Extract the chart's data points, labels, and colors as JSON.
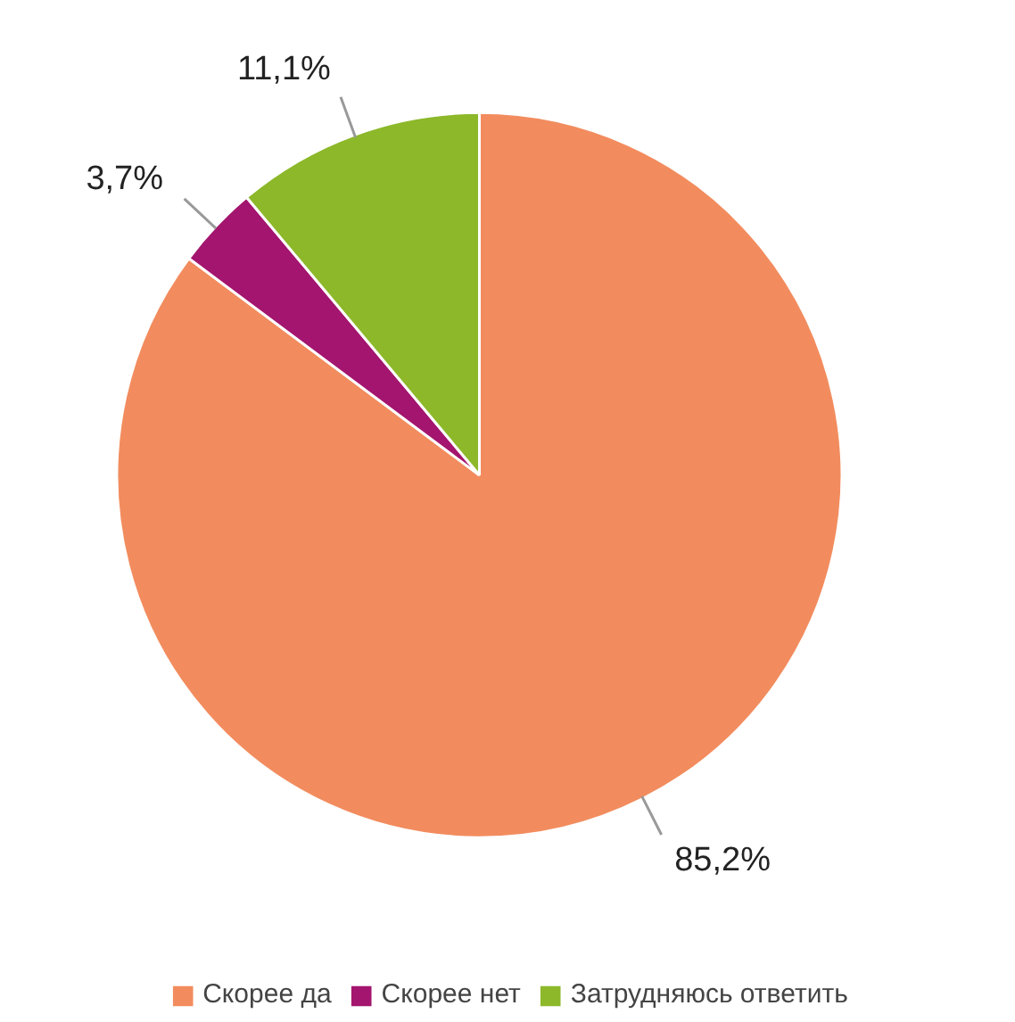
{
  "chart_data": {
    "type": "pie",
    "categories": [
      "Скорее да",
      "Скорее нет",
      "Затрудняюсь ответить"
    ],
    "values": [
      85.2,
      3.7,
      11.1
    ],
    "colors": [
      "#f28c5e",
      "#a3156e",
      "#8cb82a"
    ],
    "value_labels": [
      "85,2%",
      "3,7%",
      "11,1%"
    ],
    "legend": "bottom"
  }
}
